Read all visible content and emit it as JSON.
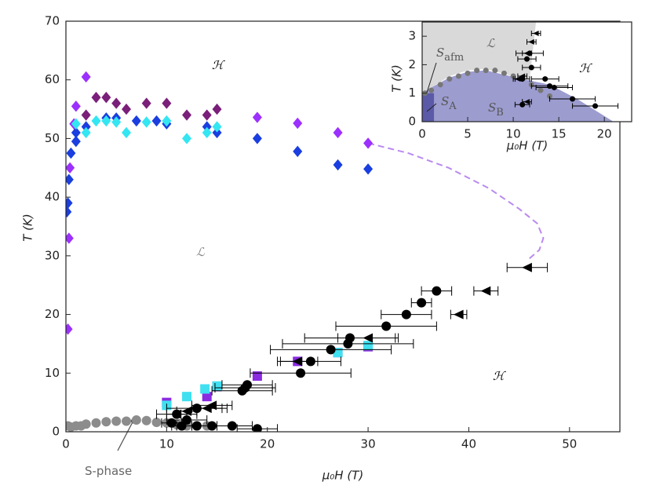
{
  "chart_data": [
    {
      "type": "scatter",
      "xlabel": "μ₀H (T)",
      "ylabel": "T (K)",
      "xlim": [
        0,
        55
      ],
      "ylim": [
        0,
        70
      ],
      "xticks": [
        0,
        10,
        20,
        30,
        40,
        50
      ],
      "yticks": [
        0,
        10,
        20,
        30,
        40,
        50,
        60,
        70
      ],
      "annotations": [
        {
          "text": "ℋ"
        },
        {
          "text": "ℒ"
        },
        {
          "text": "ℋ"
        },
        {
          "text": "S-phase"
        }
      ],
      "series": [
        {
          "kind": "line",
          "color": "#b98af0",
          "x": [
            30,
            34,
            38,
            42,
            45,
            46.8,
            47.4,
            47.0,
            46.0
          ],
          "y": [
            49.2,
            47.5,
            45,
            41.5,
            38,
            35.5,
            33,
            31,
            29.5
          ]
        },
        {
          "kind": "points",
          "marker": "circle",
          "color": "#8c8c8c",
          "x": [
            0.2,
            0.5,
            1,
            1.5,
            2,
            3,
            4,
            5,
            6,
            7,
            8,
            9,
            10,
            11,
            12,
            13,
            14
          ],
          "y": [
            1,
            0.8,
            1,
            1,
            1.3,
            1.5,
            1.7,
            1.8,
            1.8,
            2,
            1.9,
            1.6,
            1.5,
            1.2,
            1,
            1,
            1
          ]
        },
        {
          "kind": "points",
          "marker": "diamond",
          "color": "#7a1f7a",
          "x": [
            2,
            3,
            4,
            5,
            6,
            8,
            10,
            12,
            14,
            15
          ],
          "y": [
            54,
            57,
            57,
            56,
            55,
            56,
            56,
            54,
            54,
            55
          ]
        },
        {
          "kind": "points",
          "marker": "diamond",
          "color": "#9b30ff",
          "x": [
            0.2,
            0.3,
            0.4,
            0.8,
            1,
            2,
            19,
            23,
            27,
            30
          ],
          "y": [
            17.5,
            33,
            45,
            52.5,
            55.5,
            60.5,
            53.6,
            52.6,
            51,
            49.2
          ]
        },
        {
          "kind": "points",
          "marker": "diamond",
          "color": "#1a3ee0",
          "x": [
            0.1,
            0.2,
            0.3,
            0.5,
            1,
            1,
            2,
            4,
            5,
            7,
            9,
            10,
            14,
            15,
            19,
            23,
            27,
            30
          ],
          "y": [
            37.5,
            39,
            43,
            47.5,
            49.5,
            51,
            52,
            53.5,
            53.5,
            53,
            53,
            52.5,
            52,
            51,
            50,
            47.8,
            45.5,
            44.8
          ]
        },
        {
          "kind": "points",
          "marker": "diamond",
          "color": "#33e6f2",
          "x": [
            1,
            2,
            3,
            4,
            5,
            6,
            8,
            10,
            12,
            14,
            15
          ],
          "y": [
            52.5,
            51,
            53,
            53,
            52.8,
            51,
            52.8,
            53,
            50,
            51,
            52
          ]
        },
        {
          "kind": "points",
          "marker": "square",
          "color": "#8a2be2",
          "x": [
            10,
            14,
            15,
            19,
            23,
            27,
            30
          ],
          "y": [
            5,
            6,
            7.7,
            9.5,
            12,
            13.5,
            14.5
          ]
        },
        {
          "kind": "points",
          "marker": "square",
          "color": "#40e0f0",
          "x": [
            10,
            12,
            13.8,
            15,
            27,
            30
          ],
          "y": [
            4.5,
            6,
            7.3,
            7.8,
            13.5,
            14.7
          ]
        },
        {
          "kind": "points",
          "marker": "circle",
          "color": "#000000",
          "x": [
            36.8,
            35.3,
            33.8,
            31.8,
            28.2,
            28,
            26.3,
            24.3,
            23.3,
            18,
            17.8,
            17.5,
            13,
            11,
            12,
            13,
            16.5,
            19,
            14.5,
            11.5,
            10.5
          ],
          "y": [
            24,
            22,
            20,
            18,
            16,
            15,
            14,
            12,
            10,
            8,
            7.5,
            7,
            4,
            3,
            2,
            1,
            1,
            0.5,
            1,
            1,
            1.5
          ],
          "xerr": [
            1.5,
            1,
            2.5,
            5,
            4.5,
            6.5,
            6,
            3,
            5,
            2.5,
            3,
            3,
            3,
            2,
            2,
            2,
            2,
            2,
            2,
            1,
            1
          ]
        },
        {
          "kind": "points",
          "marker": "triangle-left",
          "color": "#000000",
          "x": [
            45.8,
            41.7,
            39,
            30,
            23,
            14.5,
            14,
            12,
            11
          ],
          "y": [
            28,
            24,
            20,
            16,
            12,
            4.5,
            4,
            3.5,
            3
          ],
          "xerr": [
            2,
            1.2,
            0.8,
            3,
            2,
            2,
            1.5,
            1,
            1
          ]
        }
      ]
    },
    {
      "type": "scatter",
      "xlabel": "μ₀H (T)",
      "ylabel": "T (K)",
      "xlim": [
        0,
        23
      ],
      "ylim": [
        0,
        3.5
      ],
      "xticks": [
        0,
        5,
        10,
        15,
        20
      ],
      "yticks": [
        0,
        1,
        2,
        3
      ],
      "annotations": [
        {
          "text": "ℒ"
        },
        {
          "text": "ℋ"
        },
        {
          "text": "S",
          "sub": "afm"
        },
        {
          "text": "S",
          "sub": "A"
        },
        {
          "text": "S",
          "sub": "B"
        }
      ],
      "series": [
        {
          "kind": "area",
          "color": "#d9d9d9",
          "x": [
            0,
            12.5,
            11.8,
            10,
            7,
            5,
            3,
            1,
            0
          ],
          "y": [
            3.5,
            3.5,
            1.5,
            1.6,
            1.85,
            1.8,
            1.6,
            1.2,
            1.0
          ]
        },
        {
          "kind": "area",
          "color": "#9c9ccf",
          "x": [
            0,
            0,
            1,
            3,
            5,
            7,
            9,
            11,
            14,
            17,
            19,
            21
          ],
          "y": [
            0,
            1.0,
            1.2,
            1.55,
            1.75,
            1.8,
            1.65,
            1.5,
            1.3,
            0.8,
            0.4,
            0
          ]
        },
        {
          "kind": "area",
          "color": "#5a5aa8",
          "x": [
            0,
            1.3,
            1.3,
            0
          ],
          "y": [
            0,
            0,
            1,
            1
          ]
        },
        {
          "kind": "points",
          "marker": "circle",
          "color": "#777777",
          "x": [
            0.3,
            1,
            2,
            3,
            4,
            5,
            6,
            7,
            8,
            9,
            10,
            11,
            12,
            13,
            14
          ],
          "y": [
            1,
            1.1,
            1.3,
            1.5,
            1.6,
            1.7,
            1.8,
            1.8,
            1.8,
            1.7,
            1.6,
            1.5,
            1.3,
            1.1,
            0.9
          ]
        },
        {
          "kind": "points",
          "marker": "circle",
          "color": "#000000",
          "x": [
            11.8,
            11.5,
            12,
            13.5,
            14,
            14.5,
            16.5,
            19,
            11,
            11
          ],
          "y": [
            2.4,
            2.2,
            1.9,
            1.5,
            1.25,
            1.2,
            0.8,
            0.55,
            1.5,
            0.6
          ],
          "xerr": [
            1.5,
            1,
            1,
            1.5,
            2,
            2,
            2.5,
            2.5,
            0.8,
            0.8
          ]
        },
        {
          "kind": "points",
          "marker": "triangle-left",
          "color": "#000000",
          "x": [
            12.5,
            12,
            11.5,
            11,
            10.5,
            11.5
          ],
          "y": [
            3.1,
            2.8,
            2.4,
            1.6,
            1.5,
            0.7
          ],
          "xerr": [
            0.5,
            0.5,
            0.5,
            0.5,
            0.5,
            0.5
          ]
        }
      ]
    }
  ]
}
